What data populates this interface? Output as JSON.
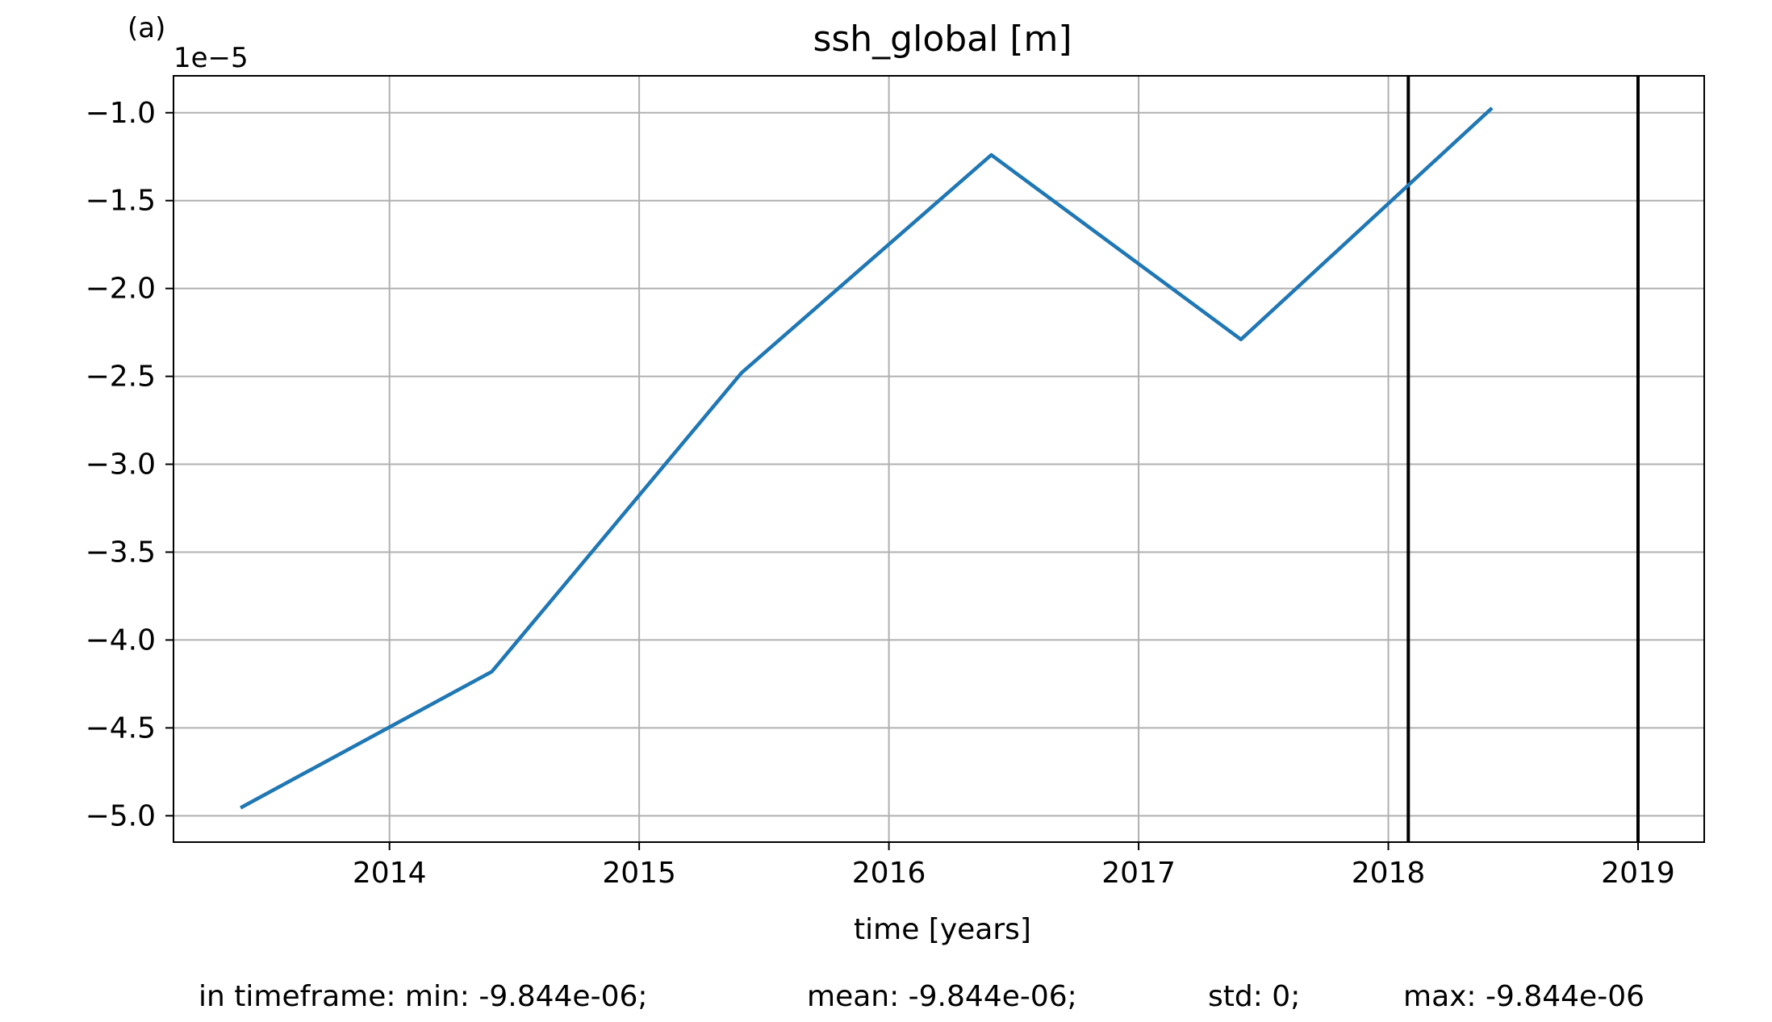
{
  "figure": {
    "panel_label": "(a)",
    "offset_text": "1e−5",
    "footer": {
      "min": "in timeframe: min: -9.844e-06;",
      "mean": "mean: -9.844e-06;",
      "std": "std: 0;",
      "max": "max: -9.844e-06"
    }
  },
  "chart_data": {
    "type": "line",
    "title": "ssh_global [m]",
    "xlabel": "time [years]",
    "ylabel": "",
    "xlim": [
      2013.135,
      2019.265
    ],
    "ylim": [
      -5.15,
      -0.79
    ],
    "y_scale_factor": "1e-5",
    "x_ticks": [
      2014,
      2015,
      2016,
      2017,
      2018,
      2019
    ],
    "x_tick_labels": [
      "2014",
      "2015",
      "2016",
      "2017",
      "2018",
      "2019"
    ],
    "y_ticks": [
      -5.0,
      -4.5,
      -4.0,
      -3.5,
      -3.0,
      -2.5,
      -2.0,
      -1.5,
      -1.0
    ],
    "y_tick_labels": [
      "−5.0",
      "−4.5",
      "−4.0",
      "−3.5",
      "−3.0",
      "−2.5",
      "−2.0",
      "−1.5",
      "−1.0"
    ],
    "grid": true,
    "series": [
      {
        "color": "#1f77b4",
        "x": [
          2013.41,
          2014.41,
          2015.41,
          2016.41,
          2017.41,
          2018.41
        ],
        "y": [
          -4.95,
          -4.18,
          -2.48,
          -1.24,
          -2.29,
          -0.98
        ]
      }
    ],
    "vlines": {
      "color": "#000000",
      "x": [
        2018.08,
        2019.0
      ]
    },
    "colors": {
      "grid": "#b0b0b0",
      "axes": "#000000"
    }
  }
}
